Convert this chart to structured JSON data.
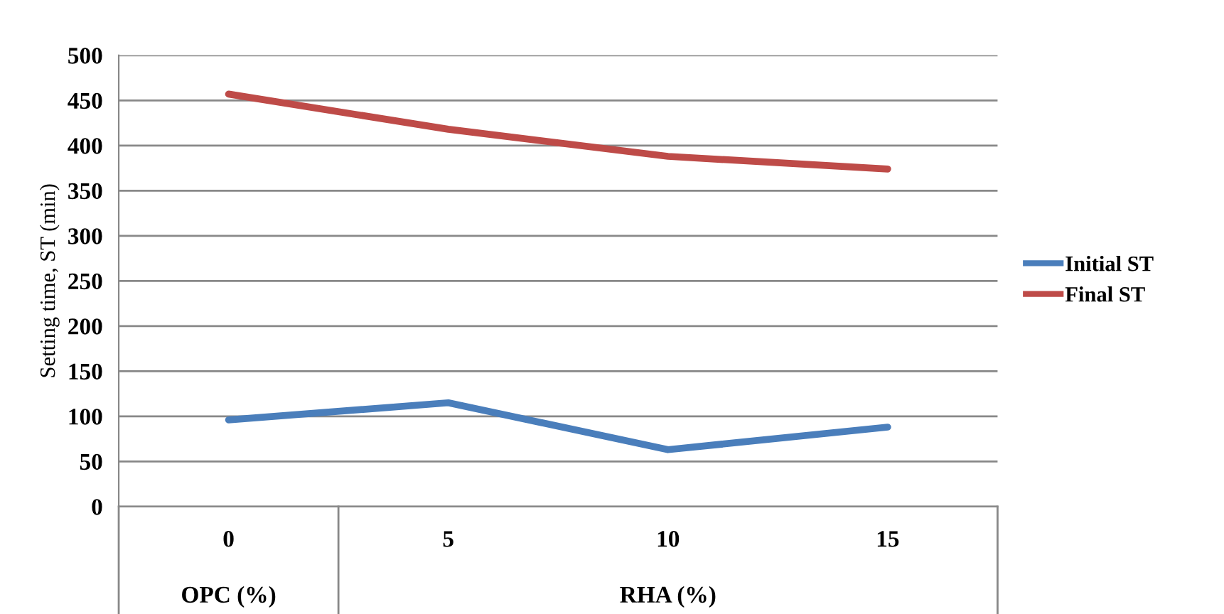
{
  "chart_data": {
    "type": "line",
    "ylabel": "Setting time, ST (min)",
    "categories": [
      "0",
      "5",
      "10",
      "15"
    ],
    "series": [
      {
        "name": "Initial ST",
        "color": "#4a7ebb",
        "values": [
          96,
          115,
          63,
          88
        ]
      },
      {
        "name": "Final ST",
        "color": "#be4b48",
        "values": [
          457,
          418,
          388,
          374
        ]
      }
    ],
    "annotations": [
      "OPC (%)",
      "RHA (%)"
    ],
    "ylim": [
      0,
      500
    ],
    "yticks": [
      0,
      50,
      100,
      150,
      200,
      250,
      300,
      350,
      400,
      450,
      500
    ],
    "grid": "y",
    "legend": "right",
    "marker": "none",
    "line_style": "solid"
  }
}
